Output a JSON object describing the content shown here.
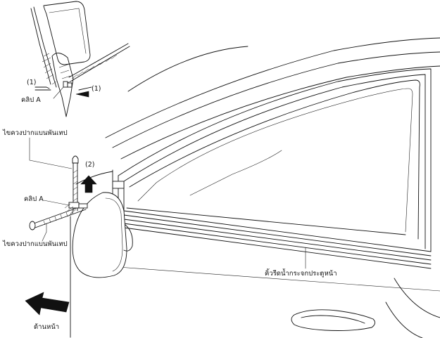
{
  "labels": {
    "step1_upper_left": "(1)",
    "step1_upper_right": "(1)",
    "clip_a_upper": "คลิป A",
    "tool_upper": "ไขควงปากแบนพันเทป",
    "step2": "(2)",
    "clip_a_lower": "คลิป A",
    "tool_lower": "ไขควงปากแบนพันเทป",
    "weatherstrip": "คิ้วรีดน้ำกระจกประตูหน้า",
    "front": "ด้านหน้า"
  },
  "icons": {
    "front_arrow": "arrow-left-icon",
    "lift_arrow": "arrow-up-icon",
    "push_arrow": "arrow-right-icon"
  }
}
